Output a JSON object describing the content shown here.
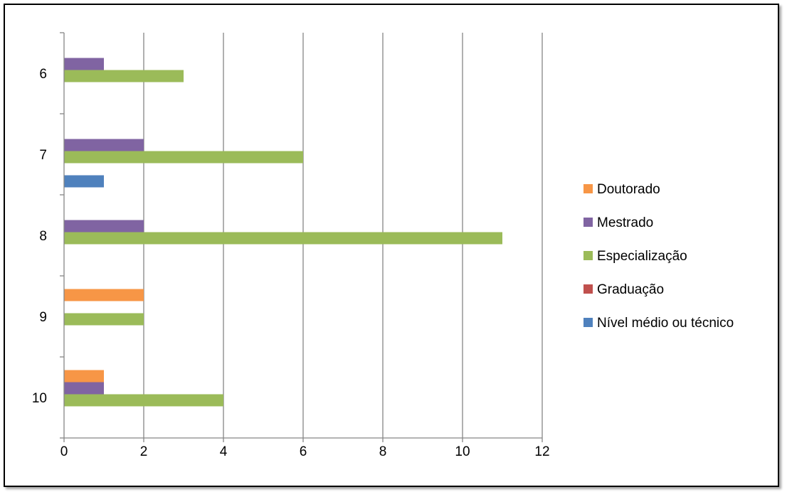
{
  "chart_data": {
    "type": "bar",
    "orientation": "horizontal",
    "title": "",
    "xlabel": "",
    "ylabel": "",
    "categories": [
      "6",
      "7",
      "8",
      "9",
      "10"
    ],
    "xlim": [
      0,
      12
    ],
    "xticks": [
      "0",
      "2",
      "4",
      "6",
      "8",
      "10",
      "12"
    ],
    "grid": "vertical",
    "legend_position": "right",
    "series": [
      {
        "name": "Nível médio ou técnico",
        "color": "#4F81BD",
        "values": [
          0,
          1,
          0,
          0,
          0
        ]
      },
      {
        "name": "Graduação",
        "color": "#C0504D",
        "values": [
          0,
          0,
          0,
          0,
          0
        ]
      },
      {
        "name": "Especialização",
        "color": "#9BBB59",
        "values": [
          3,
          6,
          11,
          2,
          4
        ]
      },
      {
        "name": "Mestrado",
        "color": "#8064A2",
        "values": [
          1,
          2,
          2,
          0,
          1
        ]
      },
      {
        "name": "Doutorado",
        "color": "#F79646",
        "values": [
          0,
          0,
          0,
          2,
          1
        ]
      }
    ],
    "legend_order": [
      "Doutorado",
      "Mestrado",
      "Especialização",
      "Graduação",
      "Nível médio ou técnico"
    ]
  }
}
